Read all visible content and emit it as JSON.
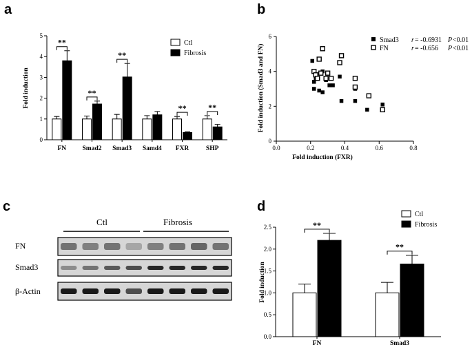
{
  "panels": {
    "a": "a",
    "b": "b",
    "c": "c",
    "d": "d"
  },
  "chart_data": [
    {
      "panel": "a",
      "type": "bar",
      "categories": [
        "FN",
        "Smad2",
        "Smad3",
        "Samd4",
        "FXR",
        "SHP"
      ],
      "series": [
        {
          "name": "Ctl",
          "values": [
            1.0,
            1.0,
            1.0,
            1.0,
            1.0,
            1.0
          ],
          "errors": [
            0.12,
            0.14,
            0.22,
            0.16,
            0.12,
            0.16
          ],
          "color": "#ffffff"
        },
        {
          "name": "Fibrosis",
          "values": [
            3.8,
            1.72,
            3.02,
            1.2,
            0.35,
            0.62
          ],
          "errors": [
            0.48,
            0.14,
            0.65,
            0.16,
            0.03,
            0.12
          ],
          "color": "#000000"
        }
      ],
      "significance": [
        "**",
        "**",
        "**",
        "",
        "**",
        "**"
      ],
      "ylabel": "Fold induction",
      "ylim": [
        0,
        5
      ],
      "yticks": [
        "0",
        "1",
        "2",
        "3",
        "4",
        "5"
      ]
    },
    {
      "panel": "b",
      "type": "scatter",
      "xlabel": "Fold induction (FXR)",
      "ylabel": "Fold induction (Smad3 and FN)",
      "xlim": [
        0.0,
        0.8
      ],
      "ylim": [
        0,
        6
      ],
      "xticks": [
        "0.0",
        "0.2",
        "0.4",
        "0.6",
        "0.8"
      ],
      "yticks": [
        "0",
        "2",
        "4",
        "6"
      ],
      "series": [
        {
          "name": "Smad3",
          "marker": "filled-square",
          "r_label": "r",
          "r_value": "= -0.6931",
          "p_label": "P",
          "p_value": "<0.01",
          "points": [
            [
              0.21,
              4.6
            ],
            [
              0.22,
              3.4
            ],
            [
              0.22,
              3.0
            ],
            [
              0.23,
              3.6
            ],
            [
              0.25,
              2.9
            ],
            [
              0.27,
              2.8
            ],
            [
              0.27,
              4.0
            ],
            [
              0.29,
              3.5
            ],
            [
              0.31,
              3.2
            ],
            [
              0.33,
              3.2
            ],
            [
              0.37,
              3.7
            ],
            [
              0.38,
              2.3
            ],
            [
              0.46,
              3.0
            ],
            [
              0.46,
              2.3
            ],
            [
              0.53,
              1.8
            ],
            [
              0.62,
              2.1
            ]
          ]
        },
        {
          "name": "FN",
          "marker": "open-square",
          "r_label": "r",
          "r_value": "= -0.656",
          "p_label": "P",
          "p_value": "<0.01",
          "points": [
            [
              0.22,
              4.0
            ],
            [
              0.23,
              3.8
            ],
            [
              0.24,
              3.6
            ],
            [
              0.25,
              4.7
            ],
            [
              0.26,
              3.9
            ],
            [
              0.27,
              5.3
            ],
            [
              0.29,
              3.6
            ],
            [
              0.3,
              3.9
            ],
            [
              0.32,
              3.6
            ],
            [
              0.37,
              4.5
            ],
            [
              0.38,
              4.9
            ],
            [
              0.46,
              3.6
            ],
            [
              0.46,
              3.1
            ],
            [
              0.54,
              2.6
            ],
            [
              0.62,
              1.8
            ]
          ]
        }
      ]
    },
    {
      "panel": "d",
      "type": "bar",
      "categories": [
        "FN",
        "Smad3"
      ],
      "series": [
        {
          "name": "Ctl",
          "values": [
            1.0,
            1.0
          ],
          "errors": [
            0.2,
            0.24
          ],
          "color": "#ffffff"
        },
        {
          "name": "Fibrosis",
          "values": [
            2.2,
            1.66
          ],
          "errors": [
            0.16,
            0.2
          ],
          "color": "#000000"
        }
      ],
      "significance": [
        "**",
        "**"
      ],
      "ylabel": "Fold induction",
      "ylim": [
        0,
        2.5
      ],
      "yticks": [
        "0.0",
        "0.5",
        "1.0",
        "1.5",
        "2.0",
        "2.5"
      ]
    }
  ],
  "blot": {
    "groups": [
      "Ctl",
      "Fibrosis"
    ],
    "rows": [
      "FN",
      "Smad3",
      "β-Actin"
    ]
  }
}
